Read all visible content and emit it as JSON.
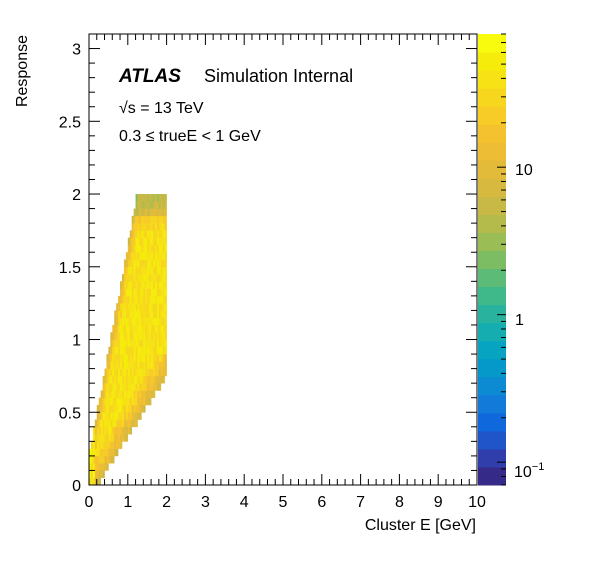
{
  "chart_data": {
    "type": "heatmap",
    "xlabel": "Cluster E [GeV]",
    "ylabel": "Response",
    "xlim": [
      0,
      10
    ],
    "ylim": [
      0,
      3.1
    ],
    "x_ticks": [
      "0",
      "1",
      "2",
      "3",
      "4",
      "5",
      "6",
      "7",
      "8",
      "9",
      "10"
    ],
    "y_ticks": [
      "0",
      "0.5",
      "1",
      "1.5",
      "2",
      "2.5",
      "3"
    ],
    "annotations": {
      "experiment": "ATLAS",
      "status": "Simulation Internal",
      "energy": "√s = 13 TeV",
      "selection": "0.3 ≤ trueE < 1 GeV"
    },
    "colorbar": {
      "scale": "log",
      "range": [
        0.07,
        80
      ],
      "tick_labels": [
        "10^-1",
        "1",
        "10"
      ],
      "tick_values": [
        0.1,
        1,
        10
      ],
      "palette": [
        "#352a87",
        "#2f3eab",
        "#1f55c9",
        "#0f68dc",
        "#127ad8",
        "#0d8bd2",
        "#0599c9",
        "#06a4c0",
        "#16adb0",
        "#29b39e",
        "#3fb88a",
        "#5cbb76",
        "#7cbd63",
        "#9abd55",
        "#b4bb4b",
        "#c8b946",
        "#d7b940",
        "#e2bb3b",
        "#ecbd35",
        "#f4c22e",
        "#f7cc26",
        "#f7d71d",
        "#f6e215",
        "#f5ec0c",
        "#f9fb0e"
      ],
      "colors": {
        "low": "#352a87",
        "mid": "#13b3a8",
        "high": "#f9fb0e"
      }
    },
    "distribution_note": "filled wedge: cluster E from ~0 up to ~2 GeV, response from 0 up to 2; response ceiling rises with E; dense yellow core near low response, green edges",
    "series": [
      {
        "bins": "response_vs_clusterE",
        "x_range": [
          0,
          2
        ],
        "y_range": [
          0,
          2
        ]
      }
    ]
  }
}
